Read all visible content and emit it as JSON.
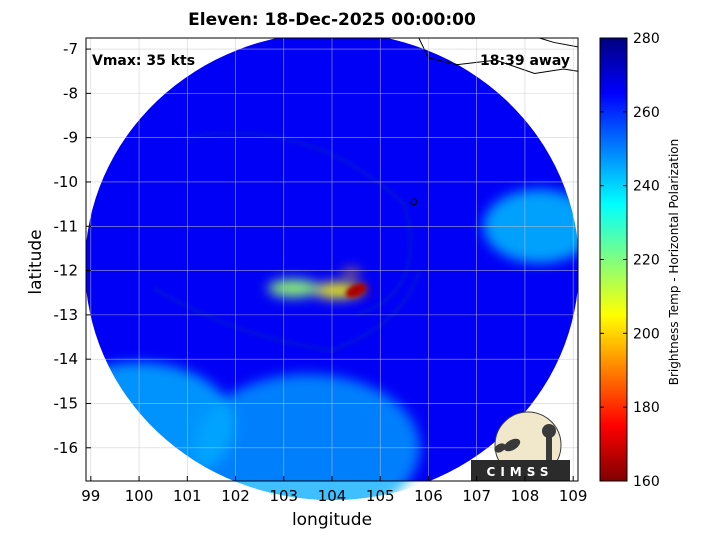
{
  "annotations": {
    "vmax": "Vmax: 35 kts",
    "time_away": "18:39 away"
  },
  "logo": {
    "text": "CIMSS"
  },
  "chart_data": {
    "type": "heatmap",
    "title": "Eleven: 18-Dec-2025 00:00:00",
    "xlabel": "longitude",
    "ylabel": "latitude",
    "xlim": [
      98.9,
      109.1
    ],
    "ylim": [
      -16.75,
      -6.75
    ],
    "xticks": [
      99,
      100,
      101,
      102,
      103,
      104,
      105,
      106,
      107,
      108,
      109
    ],
    "yticks": [
      -7,
      -8,
      -9,
      -10,
      -11,
      -12,
      -13,
      -14,
      -15,
      -16
    ],
    "grid": true,
    "colorbar": {
      "label": "Brightness Temp - Horizontal Polarization",
      "min": 160,
      "max": 280,
      "ticks": [
        280,
        260,
        240,
        220,
        200,
        180,
        160
      ],
      "colormap": [
        "#7f0000",
        "#ff0000",
        "#ff8000",
        "#ffff00",
        "#80ff80",
        "#00ffff",
        "#0080ff",
        "#0000ff",
        "#00007f"
      ]
    },
    "swath": {
      "center_lon": 104.0,
      "center_lat": -11.9,
      "background_tb": 266
    },
    "features": [
      {
        "name": "eyewall convection core",
        "lon": 104.5,
        "lat": -12.45,
        "tb": 165
      },
      {
        "name": "inner core band",
        "lon": 104.1,
        "lat": -12.45,
        "tb": 205
      },
      {
        "name": "western band",
        "lon": 103.2,
        "lat": -12.4,
        "tb": 218
      },
      {
        "name": "northern cell",
        "lon": 104.4,
        "lat": -12.05,
        "tb": 195
      },
      {
        "name": "southwest band",
        "lon": 100.0,
        "lat": -15.5,
        "tb": 242
      },
      {
        "name": "eastern convection",
        "lon": 108.3,
        "lat": -11.0,
        "tb": 240
      },
      {
        "name": "southern warm area",
        "lon": 103.5,
        "lat": -16.0,
        "tb": 245
      }
    ]
  }
}
